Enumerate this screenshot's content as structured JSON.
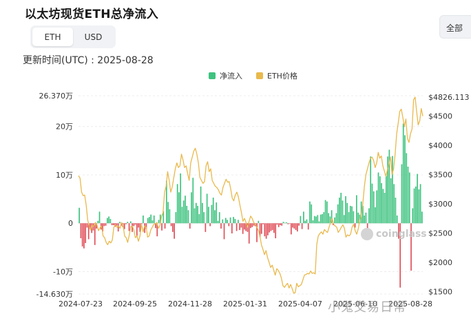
{
  "title": "以太坊现货ETH总净流入",
  "toggle": {
    "eth": "ETH",
    "usd": "USD"
  },
  "updated": "更新时间(UTC) : 2025-08-28",
  "range_button": "全部",
  "watermark": {
    "logo": "coinglass",
    "text": "小鬼交易日常"
  },
  "colors": {
    "inflow": "#3ec37f",
    "outflow": "#e0505a",
    "price": "#e9b94d",
    "grid": "#ececec",
    "axis_text": "#333333"
  },
  "chart_data": {
    "type": "bar",
    "legend": [
      {
        "name": "净流入",
        "color": "#3ec37f",
        "shape": "square"
      },
      {
        "name": "ETH价格",
        "color": "#e9b94d",
        "shape": "square"
      }
    ],
    "legend_position": "top-center",
    "x_tick_labels": [
      "2024-07-23",
      "2024-09-25",
      "2024-11-28",
      "2025-01-31",
      "2025-04-07",
      "2025-06-10",
      "2025-08-28"
    ],
    "left_axis": {
      "ticks": [
        26.37,
        20,
        10,
        0,
        -10,
        -14.63
      ],
      "tick_labels": [
        "26.370万",
        "20万",
        "10万",
        "0",
        "-10万",
        "-14.630万"
      ],
      "range": [
        -14.63,
        26.37
      ]
    },
    "right_axis": {
      "ticks": [
        4826.113,
        4500,
        4000,
        3500,
        3000,
        2500,
        2000,
        1500
      ],
      "tick_labels": [
        "$4826.113",
        "$4500",
        "$4000",
        "$3500",
        "$3000",
        "$2500",
        "$2000",
        "$1500"
      ],
      "range": [
        1480,
        4826.113
      ]
    },
    "grid": true,
    "net_inflow_series": {
      "name": "净流入",
      "unit": "万 ETH",
      "values": [
        3.2,
        -3.1,
        -4.8,
        -5.2,
        -4.1,
        -0.9,
        -3.3,
        -1.2,
        -2.0,
        -1.5,
        -4.5,
        -1.1,
        0.5,
        2.4,
        -1.3,
        -1.7,
        -0.6,
        -0.5,
        1.1,
        1.4,
        0.9,
        -0.4,
        -0.4,
        -0.7,
        -0.5,
        -1.7,
        0.3,
        -0.5,
        -0.8,
        -1.2,
        -0.2,
        0.3,
        -1.6,
        0.4,
        -1.8,
        -0.6,
        -0.3,
        -2.6,
        -0.9,
        -1.8,
        -0.2,
        1.6,
        -2.0,
        -1.2,
        1.1,
        1.3,
        1.8,
        0.6,
        1.6,
        -1.0,
        -2.7,
        0.7,
        1.8,
        -1.5,
        2.5,
        -1.1,
        8.8,
        4.4,
        2.9,
        -0.6,
        -1.8,
        -3.2,
        2.3,
        8.1,
        6.4,
        10.3,
        3.4,
        4.7,
        5.7,
        3.6,
        2.7,
        -1.1,
        6.4,
        9.4,
        3.1,
        4.2,
        3.6,
        1.9,
        7.6,
        4.2,
        2.3,
        -1.8,
        6.1,
        3.4,
        -0.6,
        3.8,
        5.3,
        2.7,
        4.3,
        0.5,
        2.3,
        -1.1,
        0.8,
        -3.3,
        1.1,
        0.7,
        -0.6,
        1.2,
        -2.1,
        1.3,
        0.9,
        -1.6,
        0.7,
        -1.4,
        -0.9,
        -2.2,
        -1.3,
        -1.6,
        -1.8,
        -4.2,
        -1.0,
        -0.8,
        -0.5,
        -0.6,
        -3.9,
        0.5,
        -2.8,
        -2.2,
        -0.2,
        -2.7,
        -3.2,
        -2.5,
        -1.9,
        -1.6,
        -1.4,
        -2.0,
        -3.1,
        -0.3,
        -0.8,
        -0.4,
        -0.5,
        0.3,
        0.1,
        0.2,
        -0.2,
        -0.1,
        -2.3,
        -0.9,
        -1.1,
        -1.4,
        -1.7,
        -0.5,
        1.5,
        -1.2,
        2.4,
        0.5,
        0.8,
        -1.3,
        4.5,
        3.9,
        0.6,
        1.5,
        1.4,
        1.7,
        0.4,
        1.8,
        1.9,
        2.3,
        4.8,
        4.5,
        2.1,
        1.4,
        2.7,
        -0.4,
        1.2,
        2.1,
        3.9,
        5.3,
        6.3,
        4.7,
        1.7,
        5.6,
        4.2,
        2.3,
        3.6,
        3.5,
        2.5,
        -0.9,
        5.8,
        2.2,
        1.8,
        4.5,
        3.6,
        1.6,
        2.2,
        -2.9,
        3.1,
        13.8,
        8.2,
        6.6,
        3.3,
        6.8,
        10.5,
        9.7,
        8.3,
        7.1,
        6.3,
        9.8,
        13.8,
        15.2,
        9.3,
        13.9,
        8.1,
        5.3,
        1.6,
        -3.2,
        -13.3,
        12.2,
        20.6,
        18.2,
        14.5,
        11.7,
        10.5,
        -9.8,
        3.1,
        7.2,
        7.6,
        10.2,
        7.0,
        8.1,
        2.4
      ]
    },
    "price_series": {
      "name": "ETH价格",
      "unit": "$",
      "values": [
        3480,
        3440,
        3200,
        3140,
        3150,
        2980,
        2720,
        2620,
        2550,
        2640,
        2610,
        2680,
        2640,
        2540,
        2590,
        2620,
        2450,
        2420,
        2340,
        2300,
        2360,
        2330,
        2380,
        2600,
        2640,
        2600,
        2620,
        2580,
        2680,
        2640,
        2450,
        2420,
        2340,
        2460,
        2610,
        2620,
        2550,
        2420,
        2450,
        2360,
        2450,
        2650,
        2520,
        2620,
        2600,
        2430,
        2450,
        2550,
        2600,
        2650,
        2660,
        2680,
        2580,
        2630,
        2780,
        2850,
        3200,
        3300,
        3550,
        3400,
        3200,
        3290,
        3450,
        3600,
        3700,
        3620,
        3650,
        3850,
        3750,
        3620,
        3650,
        3520,
        3400,
        3700,
        3800,
        3900,
        3950,
        3850,
        3700,
        3450,
        3400,
        3350,
        3380,
        3650,
        3720,
        3550,
        3600,
        3400,
        3350,
        3300,
        3280,
        3240,
        3180,
        3150,
        3280,
        3350,
        3420,
        3370,
        3380,
        3260,
        3100,
        3050,
        3150,
        3200,
        3120,
        2980,
        2850,
        2700,
        2750,
        2680,
        2600,
        2700,
        2790,
        2750,
        2680,
        2650,
        2600,
        2550,
        2450,
        2300,
        2220,
        2130,
        2200,
        2080,
        2000,
        1910,
        1950,
        1870,
        1780,
        1890,
        1860,
        1810,
        1730,
        1600,
        1570,
        1610,
        1640,
        1560,
        1620,
        1550,
        1470,
        1480,
        1640,
        1580,
        1600,
        1620,
        1700,
        1780,
        1790,
        1810,
        1800,
        1850,
        1810,
        1820,
        1800,
        2300,
        2450,
        2490,
        2520,
        2480,
        2560,
        2530,
        2510,
        2600,
        2680,
        2750,
        2650,
        2620,
        2600,
        2510,
        2550,
        2600,
        2640,
        2580,
        2430,
        2470,
        2450,
        2480,
        2600,
        2650,
        2540,
        2480,
        2570,
        2720,
        2800,
        3010,
        3300,
        3500,
        3600,
        3700,
        3780,
        3800,
        3740,
        3620,
        3700,
        3880,
        3780,
        3820,
        3650,
        3560,
        3470,
        3580,
        3680,
        3800,
        3500,
        3600,
        3850,
        4200,
        4380,
        4580,
        4620,
        4480,
        4320,
        4450,
        4120,
        4050,
        4200,
        4280,
        4780,
        4826,
        4580,
        4350,
        4420,
        4630,
        4500
      ]
    }
  }
}
